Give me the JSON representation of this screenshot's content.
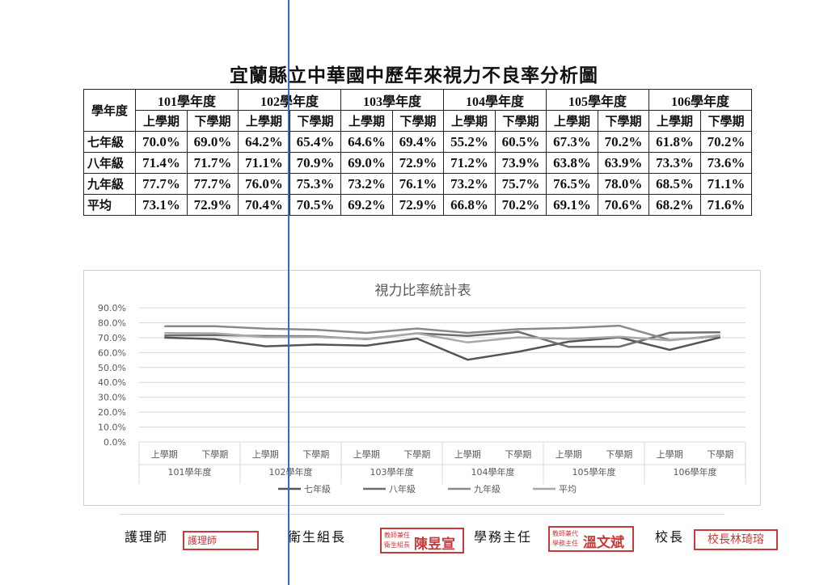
{
  "title": "宜蘭縣立中華國中歷年來視力不良率分析圖",
  "table": {
    "corner": "學年度",
    "years": [
      "101學年度",
      "102學年度",
      "103學年度",
      "104學年度",
      "105學年度",
      "106學年度"
    ],
    "semesters": [
      "上學期",
      "下學期"
    ],
    "rows": [
      {
        "label": "七年級",
        "values": [
          "70.0%",
          "69.0%",
          "64.2%",
          "65.4%",
          "64.6%",
          "69.4%",
          "55.2%",
          "60.5%",
          "67.3%",
          "70.2%",
          "61.8%",
          "70.2%"
        ]
      },
      {
        "label": "八年級",
        "values": [
          "71.4%",
          "71.7%",
          "71.1%",
          "70.9%",
          "69.0%",
          "72.9%",
          "71.2%",
          "73.9%",
          "63.8%",
          "63.9%",
          "73.3%",
          "73.6%"
        ]
      },
      {
        "label": "九年級",
        "values": [
          "77.7%",
          "77.7%",
          "76.0%",
          "75.3%",
          "73.2%",
          "76.1%",
          "73.2%",
          "75.7%",
          "76.5%",
          "78.0%",
          "68.5%",
          "71.1%"
        ]
      },
      {
        "label": "平均",
        "values": [
          "73.1%",
          "72.9%",
          "70.4%",
          "70.5%",
          "69.2%",
          "72.9%",
          "66.8%",
          "70.2%",
          "69.1%",
          "70.6%",
          "68.2%",
          "71.6%"
        ]
      }
    ]
  },
  "chart_data": {
    "type": "line",
    "title": "視力比率統計表",
    "categories": [
      "上學期",
      "下學期",
      "上學期",
      "下學期",
      "上學期",
      "下學期",
      "上學期",
      "下學期",
      "上學期",
      "下學期",
      "上學期",
      "下學期"
    ],
    "groups": [
      "101學年度",
      "102學年度",
      "103學年度",
      "104學年度",
      "105學年度",
      "106學年度"
    ],
    "ylim": [
      0,
      90
    ],
    "yticks": [
      "0.0%",
      "10.0%",
      "20.0%",
      "30.0%",
      "40.0%",
      "50.0%",
      "60.0%",
      "70.0%",
      "80.0%",
      "90.0%"
    ],
    "grid": true,
    "legend_position": "bottom",
    "series": [
      {
        "name": "七年級",
        "color": "#555555",
        "values": [
          70.0,
          69.0,
          64.2,
          65.4,
          64.6,
          69.4,
          55.2,
          60.5,
          67.3,
          70.2,
          61.8,
          70.2
        ]
      },
      {
        "name": "八年級",
        "color": "#6e6e6e",
        "values": [
          71.4,
          71.7,
          71.1,
          70.9,
          69.0,
          72.9,
          71.2,
          73.9,
          63.8,
          63.9,
          73.3,
          73.6
        ]
      },
      {
        "name": "九年級",
        "color": "#8a8a8a",
        "values": [
          77.7,
          77.7,
          76.0,
          75.3,
          73.2,
          76.1,
          73.2,
          75.7,
          76.5,
          78.0,
          68.5,
          71.1
        ]
      },
      {
        "name": "平均",
        "color": "#a8a8a8",
        "values": [
          73.1,
          72.9,
          70.4,
          70.5,
          69.2,
          72.9,
          66.8,
          70.2,
          69.1,
          70.6,
          68.2,
          71.6
        ]
      }
    ]
  },
  "signatures": {
    "nurse_label": "護理師",
    "health_leader_label": "衛生組長",
    "academic_director_label": "學務主任",
    "principal_label": "校長",
    "stamp_nurse": "護理師",
    "stamp_health_small": "教師兼任 衛生組長",
    "stamp_health_name": "陳昱宣",
    "stamp_director_small": "教師兼代 學務主任",
    "stamp_director_name": "溫文斌",
    "stamp_principal": "校長林琦瑢",
    "stamp_color": "#c83a3a"
  }
}
